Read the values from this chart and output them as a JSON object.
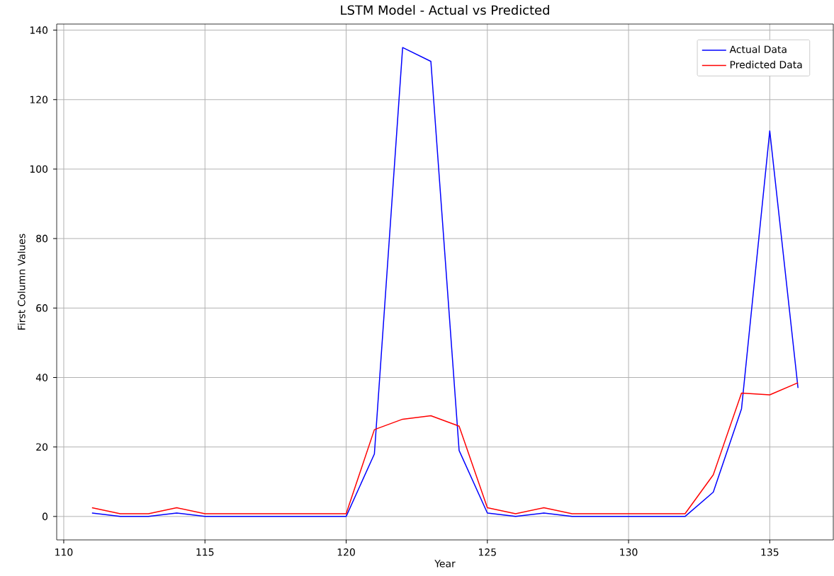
{
  "chart_data": {
    "type": "line",
    "title": "LSTM Model - Actual vs Predicted",
    "xlabel": "Year",
    "ylabel": "First Column Values",
    "x": [
      111,
      112,
      113,
      114,
      115,
      116,
      117,
      118,
      119,
      120,
      121,
      122,
      123,
      124,
      125,
      126,
      127,
      128,
      129,
      130,
      131,
      132,
      133,
      134,
      135,
      136
    ],
    "series": [
      {
        "name": "Actual Data",
        "color": "#0000ff",
        "values": [
          1,
          0,
          0,
          1,
          0,
          0,
          0,
          0,
          0,
          0,
          18,
          135,
          131,
          19,
          1,
          0,
          1,
          0,
          0,
          0,
          0,
          0,
          7,
          31,
          111,
          37
        ]
      },
      {
        "name": "Predicted Data",
        "color": "#ff0000",
        "values": [
          2.5,
          0.8,
          0.8,
          2.5,
          0.8,
          0.8,
          0.8,
          0.8,
          0.8,
          0.8,
          25,
          28,
          29,
          26,
          2.5,
          0.8,
          2.5,
          0.8,
          0.8,
          0.8,
          0.8,
          0.8,
          12,
          35.5,
          35,
          38.5
        ]
      }
    ],
    "xlim": [
      109.75,
      137.25
    ],
    "ylim": [
      -6.75,
      141.75
    ],
    "xticks": [
      110,
      115,
      120,
      125,
      130,
      135
    ],
    "yticks": [
      0,
      20,
      40,
      60,
      80,
      100,
      120,
      140
    ],
    "grid": true,
    "legend": "top right"
  }
}
